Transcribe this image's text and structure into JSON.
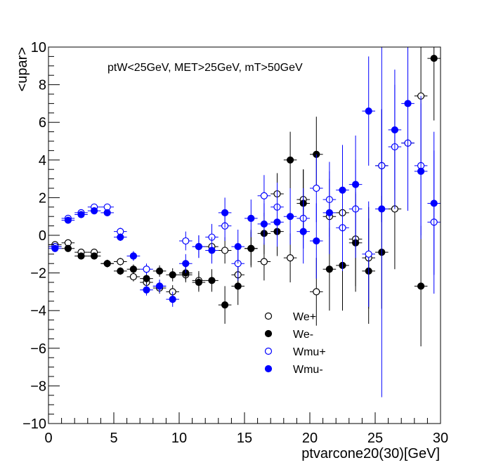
{
  "chart_data": {
    "type": "scatter",
    "annotation": "ptW<25GeV, MET>25GeV, mT>50GeV",
    "xlabel": "ptvarcone20(30)[GeV]",
    "ylabel": "<upar>",
    "xlim": [
      0,
      30
    ],
    "ylim": [
      -10,
      10
    ],
    "x_ticks": [
      "0",
      "5",
      "10",
      "15",
      "20",
      "25",
      "30"
    ],
    "y_ticks": [
      "−10",
      "−8",
      "−6",
      "−4",
      "−2",
      "0",
      "2",
      "4",
      "6",
      "8",
      "10"
    ],
    "legend_position": "lower-center",
    "series": [
      {
        "name": "We+",
        "color": "#000000",
        "filled": false,
        "points": [
          {
            "x": 0.5,
            "y": -0.5,
            "err": 0.15
          },
          {
            "x": 1.5,
            "y": -0.4,
            "err": 0.15
          },
          {
            "x": 2.5,
            "y": -0.9,
            "err": 0.15
          },
          {
            "x": 3.5,
            "y": -0.9,
            "err": 0.15
          },
          {
            "x": 4.5,
            "y": -1.5,
            "err": 0.2
          },
          {
            "x": 5.5,
            "y": -1.4,
            "err": 0.2
          },
          {
            "x": 6.5,
            "y": -2.2,
            "err": 0.25
          },
          {
            "x": 7.5,
            "y": -2.5,
            "err": 0.3
          },
          {
            "x": 8.5,
            "y": -2.8,
            "err": 0.3
          },
          {
            "x": 9.5,
            "y": -3.0,
            "err": 0.35
          },
          {
            "x": 10.5,
            "y": -2.1,
            "err": 0.4
          },
          {
            "x": 11.5,
            "y": -2.4,
            "err": 0.5
          },
          {
            "x": 12.5,
            "y": -0.6,
            "err": 0.6
          },
          {
            "x": 13.5,
            "y": -0.8,
            "err": 0.7
          },
          {
            "x": 14.5,
            "y": -2.1,
            "err": 0.8
          },
          {
            "x": 15.5,
            "y": -0.7,
            "err": 0.9
          },
          {
            "x": 16.5,
            "y": -1.4,
            "err": 1.0
          },
          {
            "x": 17.5,
            "y": 2.2,
            "err": 1.1
          },
          {
            "x": 18.5,
            "y": -1.2,
            "err": 1.3
          },
          {
            "x": 19.5,
            "y": 1.9,
            "err": 1.6
          },
          {
            "x": 20.5,
            "y": -3.0,
            "err": 1.8
          },
          {
            "x": 21.5,
            "y": 1.0,
            "err": 2.0
          },
          {
            "x": 22.5,
            "y": 1.2,
            "err": 2.3
          },
          {
            "x": 23.5,
            "y": -0.2,
            "err": 2.5
          },
          {
            "x": 24.5,
            "y": -1.2,
            "err": 2.7
          },
          {
            "x": 25.5,
            "y": 3.7,
            "err": 3.0
          },
          {
            "x": 26.5,
            "y": 1.4,
            "err": 3.2
          },
          {
            "x": 27.5,
            "y": 4.9,
            "err": 3.5
          },
          {
            "x": 28.5,
            "y": 7.4,
            "err": 3.7
          }
        ]
      },
      {
        "name": "We-",
        "color": "#000000",
        "filled": true,
        "points": [
          {
            "x": 0.5,
            "y": -0.6,
            "err": 0.15
          },
          {
            "x": 1.5,
            "y": -0.7,
            "err": 0.15
          },
          {
            "x": 2.5,
            "y": -1.1,
            "err": 0.15
          },
          {
            "x": 3.5,
            "y": -1.1,
            "err": 0.15
          },
          {
            "x": 4.5,
            "y": -1.5,
            "err": 0.2
          },
          {
            "x": 5.5,
            "y": -1.9,
            "err": 0.2
          },
          {
            "x": 6.5,
            "y": -1.8,
            "err": 0.25
          },
          {
            "x": 7.5,
            "y": -2.3,
            "err": 0.3
          },
          {
            "x": 8.5,
            "y": -1.9,
            "err": 0.3
          },
          {
            "x": 9.5,
            "y": -2.1,
            "err": 0.35
          },
          {
            "x": 10.5,
            "y": -2.0,
            "err": 0.4
          },
          {
            "x": 11.5,
            "y": -2.5,
            "err": 0.5
          },
          {
            "x": 12.5,
            "y": -2.4,
            "err": 0.6
          },
          {
            "x": 13.5,
            "y": -3.7,
            "err": 1.0
          },
          {
            "x": 14.5,
            "y": -2.7,
            "err": 1.0
          },
          {
            "x": 15.5,
            "y": -0.7,
            "err": 1.0
          },
          {
            "x": 16.5,
            "y": 0.1,
            "err": 1.1
          },
          {
            "x": 17.5,
            "y": 0.2,
            "err": 1.3
          },
          {
            "x": 18.5,
            "y": 4.0,
            "err": 1.5
          },
          {
            "x": 19.5,
            "y": 1.7,
            "err": 1.8
          },
          {
            "x": 20.5,
            "y": 4.3,
            "err": 2.0
          },
          {
            "x": 21.5,
            "y": -1.8,
            "err": 2.2
          },
          {
            "x": 22.5,
            "y": -1.6,
            "err": 2.4
          },
          {
            "x": 23.5,
            "y": -0.4,
            "err": 2.6
          },
          {
            "x": 24.5,
            "y": -1.9,
            "err": 2.8
          },
          {
            "x": 25.5,
            "y": -0.9,
            "err": 3.0
          },
          {
            "x": 28.5,
            "y": -2.7,
            "err": 3.2
          },
          {
            "x": 29.5,
            "y": 9.4,
            "err": 3.3
          }
        ]
      },
      {
        "name": "Wmu+",
        "color": "#0000ff",
        "filled": false,
        "points": [
          {
            "x": 0.5,
            "y": -0.6,
            "err": 0.15
          },
          {
            "x": 1.5,
            "y": 0.9,
            "err": 0.15
          },
          {
            "x": 2.5,
            "y": 1.2,
            "err": 0.15
          },
          {
            "x": 3.5,
            "y": 1.5,
            "err": 0.15
          },
          {
            "x": 4.5,
            "y": 1.5,
            "err": 0.15
          },
          {
            "x": 5.5,
            "y": 0.2,
            "err": 0.2
          },
          {
            "x": 6.5,
            "y": -1.1,
            "err": 0.25
          },
          {
            "x": 7.5,
            "y": -1.8,
            "err": 0.3
          },
          {
            "x": 8.5,
            "y": -2.7,
            "err": 0.3
          },
          {
            "x": 10.5,
            "y": -0.3,
            "err": 0.5
          },
          {
            "x": 11.5,
            "y": -0.6,
            "err": 0.6
          },
          {
            "x": 12.5,
            "y": -0.1,
            "err": 0.7
          },
          {
            "x": 13.5,
            "y": 0.5,
            "err": 0.8
          },
          {
            "x": 14.5,
            "y": -1.5,
            "err": 0.9
          },
          {
            "x": 16.5,
            "y": 2.1,
            "err": 1.1
          },
          {
            "x": 17.5,
            "y": 1.5,
            "err": 1.3
          },
          {
            "x": 19.5,
            "y": 0.9,
            "err": 1.6
          },
          {
            "x": 20.5,
            "y": 2.5,
            "err": 1.8
          },
          {
            "x": 21.5,
            "y": 1.9,
            "err": 2.0
          },
          {
            "x": 22.5,
            "y": 0.4,
            "err": 2.3
          },
          {
            "x": 23.5,
            "y": 1.4,
            "err": 2.6
          },
          {
            "x": 24.5,
            "y": -1.0,
            "err": 2.8
          },
          {
            "x": 25.5,
            "y": 3.7,
            "err": 3.0
          },
          {
            "x": 26.5,
            "y": 4.7,
            "err": 3.3
          },
          {
            "x": 27.5,
            "y": 4.9,
            "err": 3.6
          },
          {
            "x": 28.5,
            "y": 3.7,
            "err": 3.7
          },
          {
            "x": 29.5,
            "y": 0.7,
            "err": 3.8
          }
        ]
      },
      {
        "name": "Wmu-",
        "color": "#0000ff",
        "filled": true,
        "points": [
          {
            "x": 0.5,
            "y": -0.7,
            "err": 0.15
          },
          {
            "x": 1.5,
            "y": 0.8,
            "err": 0.15
          },
          {
            "x": 2.5,
            "y": 1.1,
            "err": 0.15
          },
          {
            "x": 3.5,
            "y": 1.3,
            "err": 0.15
          },
          {
            "x": 4.5,
            "y": 1.2,
            "err": 0.15
          },
          {
            "x": 5.5,
            "y": -0.1,
            "err": 0.2
          },
          {
            "x": 6.5,
            "y": -1.1,
            "err": 0.25
          },
          {
            "x": 7.5,
            "y": -2.9,
            "err": 0.3
          },
          {
            "x": 8.5,
            "y": -2.7,
            "err": 0.35
          },
          {
            "x": 9.5,
            "y": -3.4,
            "err": 0.4
          },
          {
            "x": 10.5,
            "y": -1.5,
            "err": 0.5
          },
          {
            "x": 11.5,
            "y": -0.6,
            "err": 0.6
          },
          {
            "x": 12.5,
            "y": -0.8,
            "err": 0.7
          },
          {
            "x": 13.5,
            "y": 1.2,
            "err": 0.8
          },
          {
            "x": 14.5,
            "y": -0.6,
            "err": 0.9
          },
          {
            "x": 15.5,
            "y": 0.9,
            "err": 1.0
          },
          {
            "x": 16.5,
            "y": 0.6,
            "err": 1.1
          },
          {
            "x": 17.5,
            "y": 0.7,
            "err": 1.3
          },
          {
            "x": 18.5,
            "y": 1.0,
            "err": 1.5
          },
          {
            "x": 19.5,
            "y": 0.2,
            "err": 1.7
          },
          {
            "x": 20.5,
            "y": -0.3,
            "err": 2.0
          },
          {
            "x": 21.5,
            "y": 1.2,
            "err": 2.2
          },
          {
            "x": 22.5,
            "y": 2.4,
            "err": 2.4
          },
          {
            "x": 23.5,
            "y": 2.7,
            "err": 2.6
          },
          {
            "x": 24.5,
            "y": 6.6,
            "err": 2.9
          },
          {
            "x": 25.5,
            "y": 1.4,
            "err": 10.0
          },
          {
            "x": 26.5,
            "y": 5.6,
            "err": 3.2
          },
          {
            "x": 27.5,
            "y": 7.0,
            "err": 3.5
          },
          {
            "x": 28.5,
            "y": 3.4,
            "err": 3.6
          },
          {
            "x": 29.5,
            "y": 1.7,
            "err": 3.8
          }
        ]
      }
    ]
  }
}
